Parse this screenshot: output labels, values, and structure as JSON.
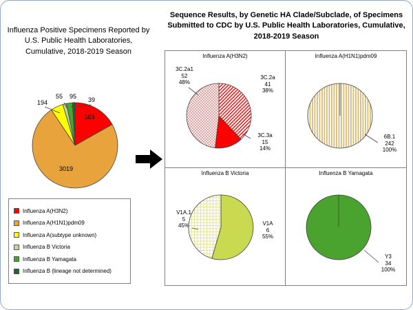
{
  "left_panel": {
    "title": "Influenza Positive Specimens Reported by U.S. Public Health Laboratories, Cumulative, 2018-2019 Season"
  },
  "right_panel": {
    "title": "Sequence Results, by Genetic HA Clade/Subclade, of Specimens Submitted to CDC by U.S. Public Health Laboratories, Cumulative, 2018-2019 Season"
  },
  "chart_data": [
    {
      "type": "pie",
      "title": "Influenza Positive Specimens Reported by U.S. Public Health Laboratories, Cumulative, 2018-2019 Season",
      "labels": [
        "Influenza A(H3N2)",
        "Influenza A(H1N1)pdm09",
        "Influenza A(subtype unknown)",
        "Influenza B Victoria",
        "Influenza B Yamagata",
        "Influenza B (lineage not determined)"
      ],
      "values": [
        689,
        3019,
        194,
        55,
        95,
        39
      ],
      "colors": [
        "#FF0000",
        "#E8A33C",
        "#FFFF00",
        "#C4D79B",
        "#4BA32F",
        "#1E6434"
      ],
      "fills": [
        "solid",
        "solid",
        "solid",
        "solid",
        "solid",
        "solid"
      ],
      "legend_position": "boxed legend lower-left"
    },
    {
      "type": "pie",
      "title": "Influenza A(H3N2)",
      "labels": [
        "3C.2a",
        "3C.3a",
        "3C.2a1"
      ],
      "values": [
        41,
        15,
        52
      ],
      "pcts": [
        "38%",
        "14%",
        "48%"
      ],
      "colors": [
        "#FF0000",
        "#FF0000",
        "#D99694"
      ],
      "fills": [
        "diag",
        "solid",
        "cross"
      ]
    },
    {
      "type": "pie",
      "title": "Influenza A(H1N1)pdm09",
      "labels": [
        "6B.1"
      ],
      "values": [
        242
      ],
      "pcts": [
        "100%"
      ],
      "colors": [
        "#D8BC76"
      ],
      "fills": [
        "vert"
      ]
    },
    {
      "type": "pie",
      "title": "Influenza B Victoria",
      "labels": [
        "V1A",
        "V1A.1"
      ],
      "values": [
        6,
        5
      ],
      "pcts": [
        "55%",
        "45%"
      ],
      "colors": [
        "#C9DA50",
        "#E3E398"
      ],
      "fills": [
        "solid",
        "grid"
      ]
    },
    {
      "type": "pie",
      "title": "Influenza B Yamagata",
      "labels": [
        "Y3"
      ],
      "values": [
        34
      ],
      "pcts": [
        "100%"
      ],
      "colors": [
        "#4BA32F"
      ],
      "fills": [
        "solid"
      ]
    }
  ]
}
